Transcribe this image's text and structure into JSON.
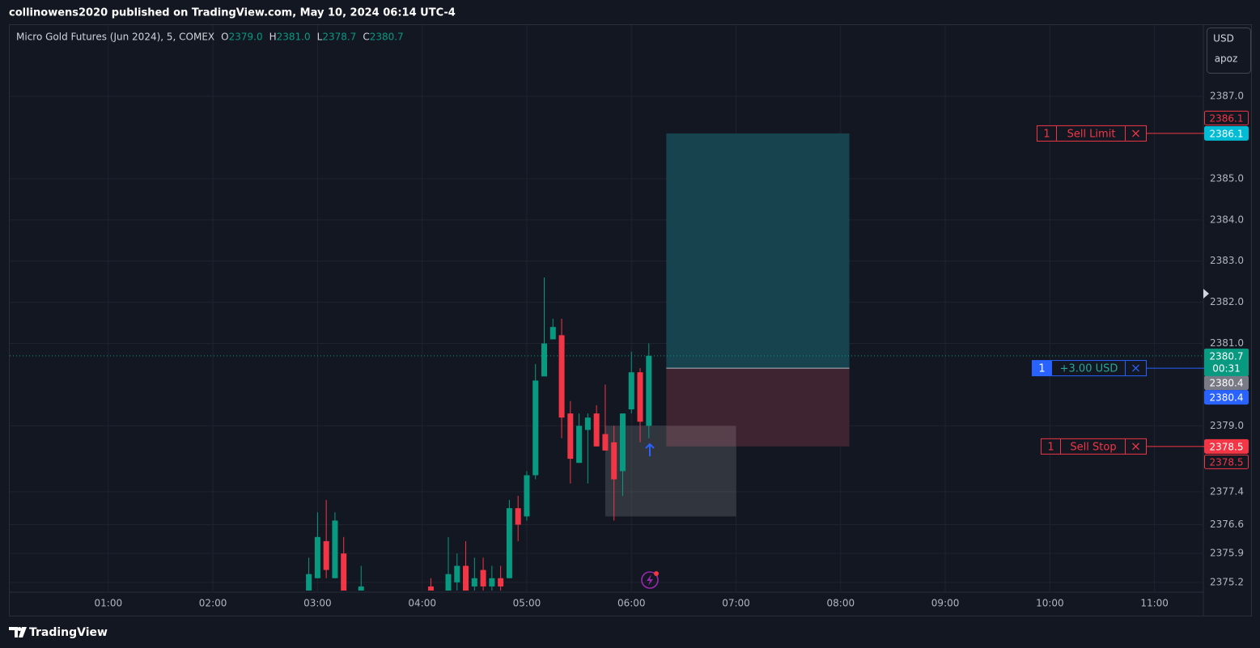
{
  "header": {
    "byline": "collinowens2020 published on TradingView.com, May 10, 2024 06:14 UTC-4"
  },
  "chart_data": {
    "type": "candlestick",
    "title": "Micro Gold Futures (Jun 2024), 5, COMEX",
    "ohlc_legend": [
      {
        "key": "O",
        "value": "2379.0"
      },
      {
        "key": "H",
        "value": "2381.0"
      },
      {
        "key": "L",
        "value": "2378.7"
      },
      {
        "key": "C",
        "value": "2380.7"
      }
    ],
    "currency": "USD",
    "unit": "apoz",
    "x": [
      "02:55",
      "03:00",
      "03:05",
      "03:10",
      "03:15",
      "03:25",
      "04:05",
      "04:15",
      "04:20",
      "04:25",
      "04:30",
      "04:35",
      "04:40",
      "04:45",
      "04:50",
      "04:55",
      "05:00",
      "05:05",
      "05:10",
      "05:15",
      "05:20",
      "05:25",
      "05:30",
      "05:35",
      "05:40",
      "05:45",
      "05:50",
      "05:55",
      "06:00",
      "06:05",
      "06:10"
    ],
    "open": [
      2375.0,
      2375.3,
      2376.2,
      2375.3,
      2375.9,
      2375.0,
      2375.1,
      2375.0,
      2375.2,
      2375.6,
      2375.1,
      2375.5,
      2375.1,
      2375.3,
      2375.3,
      2377.0,
      2376.8,
      2377.8,
      2380.2,
      2381.1,
      2381.2,
      2379.3,
      2378.1,
      2378.9,
      2379.3,
      2378.8,
      2378.6,
      2377.9,
      2379.4,
      2380.3,
      2379.0
    ],
    "high": [
      2375.8,
      2376.9,
      2377.2,
      2376.9,
      2376.3,
      2375.6,
      2375.3,
      2376.3,
      2375.9,
      2376.2,
      2375.8,
      2375.8,
      2375.6,
      2375.6,
      2377.2,
      2377.3,
      2377.9,
      2380.5,
      2382.6,
      2381.6,
      2381.6,
      2379.6,
      2379.3,
      2379.3,
      2379.5,
      2380.0,
      2379.0,
      2379.3,
      2380.8,
      2380.4,
      2381.0
    ],
    "low": [
      2375.0,
      2375.3,
      2375.3,
      2375.3,
      2375.0,
      2375.0,
      2375.0,
      2375.0,
      2375.0,
      2375.0,
      2375.0,
      2375.0,
      2375.0,
      2375.0,
      2375.3,
      2376.2,
      2376.7,
      2377.7,
      2380.2,
      2381.1,
      2378.7,
      2377.6,
      2378.1,
      2377.6,
      2378.5,
      2378.4,
      2376.7,
      2377.3,
      2379.3,
      2378.6,
      2378.7
    ],
    "close": [
      2375.4,
      2376.3,
      2375.5,
      2376.7,
      2375.0,
      2375.1,
      2375.0,
      2375.4,
      2375.6,
      2375.0,
      2375.3,
      2375.1,
      2375.3,
      2375.1,
      2377.0,
      2376.6,
      2377.8,
      2380.1,
      2381.0,
      2381.4,
      2379.2,
      2378.2,
      2379.0,
      2379.2,
      2378.5,
      2378.4,
      2377.7,
      2379.3,
      2380.3,
      2379.1,
      2380.7
    ],
    "up_color": "#089981",
    "down_color": "#f23645",
    "xlim": [
      "00:03",
      "11:28"
    ],
    "xticks": [
      "01:00",
      "02:00",
      "03:00",
      "04:00",
      "05:00",
      "06:00",
      "07:00",
      "08:00",
      "09:00",
      "10:00",
      "11:00"
    ],
    "ylim": [
      2375.0,
      2388.75
    ],
    "yticks": [
      {
        "value": 2387,
        "label": "2387.0"
      },
      {
        "value": 2385,
        "label": "2385.0"
      },
      {
        "value": 2384,
        "label": "2384.0"
      },
      {
        "value": 2383,
        "label": "2383.0"
      },
      {
        "value": 2382,
        "label": "2382.0"
      },
      {
        "value": 2381,
        "label": "2381.0"
      },
      {
        "value": 2379,
        "label": "2379.0"
      },
      2377.4,
      2376.6,
      2375.9,
      2375.2
    ],
    "grid": true,
    "last_price": {
      "value": 2380.7,
      "countdown": "00:31",
      "color": "#089981"
    },
    "price_tags": [
      {
        "value": 2386.1,
        "color": "#f23645",
        "filled": false
      },
      {
        "value": 2386.1,
        "color": "#00bcd4",
        "filled": true
      },
      {
        "value": 2380.4,
        "color": "#787b86",
        "filled": true
      },
      {
        "value": 2380.4,
        "color": "#2962ff",
        "filled": true
      },
      {
        "value": 2378.5,
        "color": "#f23645",
        "filled": true
      },
      {
        "value": 2378.5,
        "color": "#f23645",
        "filled": false
      }
    ],
    "orders": [
      {
        "qty": "1",
        "label": "Sell Limit",
        "price": 2386.1,
        "color": "#f23645",
        "text_color": "#f23645"
      },
      {
        "qty": "1",
        "label": "+3.00 USD",
        "price": 2380.4,
        "color": "#2962ff",
        "text_color": "#26a69a"
      },
      {
        "qty": "1",
        "label": "Sell Stop",
        "price": 2378.5,
        "color": "#f23645",
        "text_color": "#f23645"
      }
    ],
    "position": {
      "start": "06:20",
      "end": "08:05",
      "entry": 2380.4,
      "target": 2386.1,
      "stop": 2378.5,
      "target_color": "#16434e",
      "stop_color": "#3e2430"
    },
    "range_box": {
      "start": "05:45",
      "end": "07:00",
      "top": 2379.0,
      "bottom": 2376.8,
      "color": "#ffffff",
      "opacity": 0.13
    }
  },
  "footer": {
    "brand": "TradingView"
  }
}
